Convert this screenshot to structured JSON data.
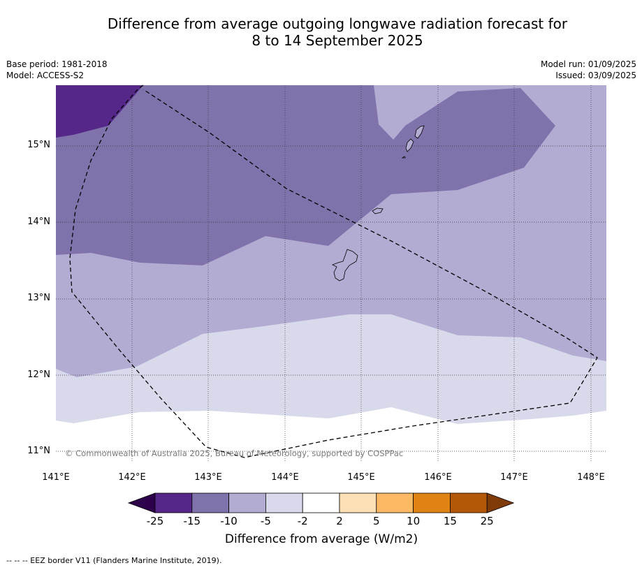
{
  "title_line1": "Difference from average outgoing longwave radiation forecast for",
  "title_line2": "8 to 14 September 2025",
  "base_period": "Base period: 1981-2018",
  "model": "Model: ACCESS-S2",
  "model_run": "Model run: 01/09/2025",
  "issued": "Issued: 03/09/2025",
  "copyright": "© Commonwealth of Australia 2025, Bureau of Meteorology, supported by COSPPac",
  "lat_labels": [
    "15°N",
    "14°N",
    "13°N",
    "12°N",
    "11°N"
  ],
  "lon_labels": [
    "141°E",
    "142°E",
    "143°E",
    "144°E",
    "145°E",
    "146°E",
    "147°E",
    "148°E"
  ],
  "colorbar": {
    "title": "Difference from average (W/m2)",
    "ticks": [
      "-25",
      "-15",
      "-10",
      "-5",
      "-2",
      "2",
      "5",
      "10",
      "15",
      "25"
    ],
    "colors": [
      "#2d004b",
      "#542788",
      "#8073ac",
      "#b2abd2",
      "#d8daeb",
      "#ffffff",
      "#fee0b6",
      "#fdb863",
      "#e08214",
      "#b35806",
      "#7f3b08"
    ]
  },
  "footnote": "--  --  -- EEZ border V11 (Flanders Marine Institute, 2019)."
}
